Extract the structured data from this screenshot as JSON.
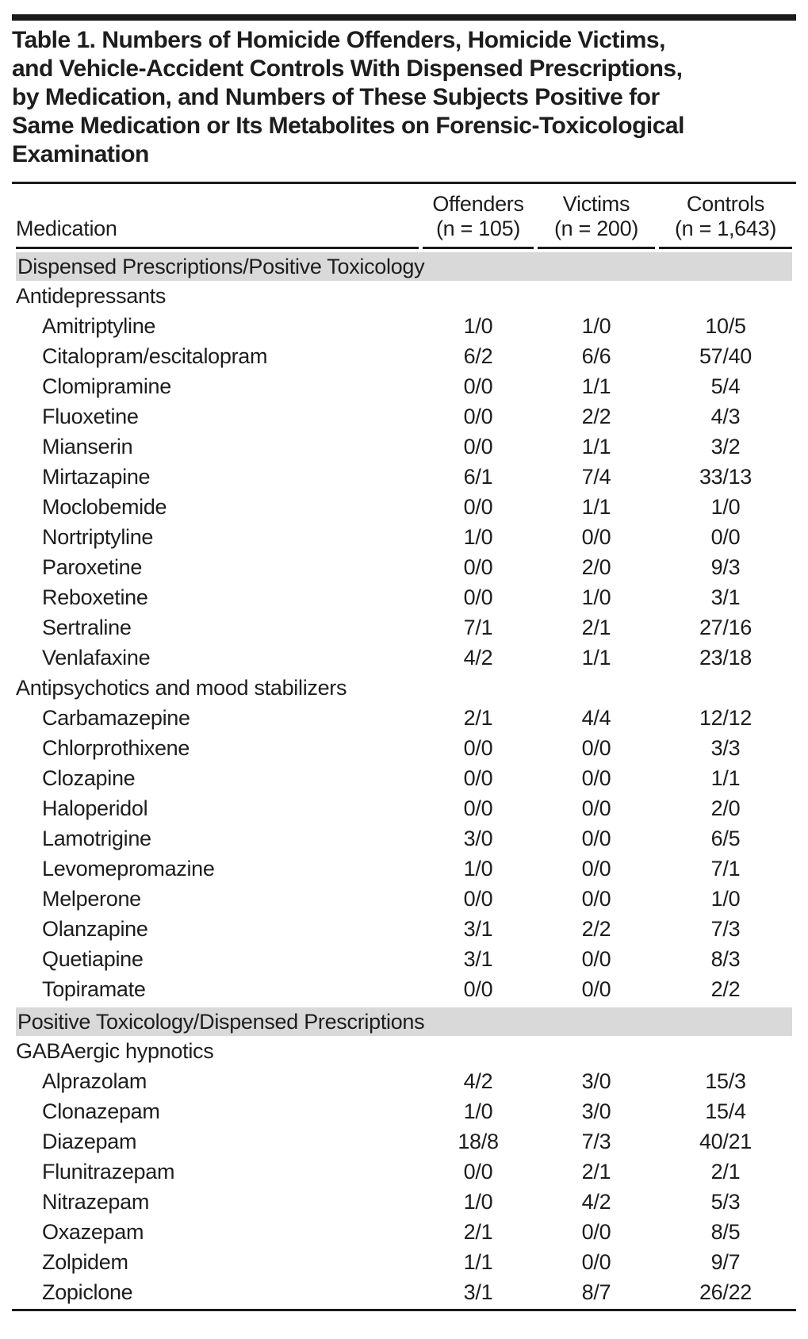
{
  "page": {
    "colors": {
      "text": "#1d1d1d",
      "rule": "#1a1a1a",
      "section_bg": "#d9d9d9",
      "background": "#ffffff"
    }
  },
  "table": {
    "title": "Table 1. Numbers of Homicide Offenders, Homicide Victims, and Vehicle-Accident Controls With Dispensed Prescriptions, by Medication, and Numbers of These Subjects Positive for Same Medication or Its Metabolites on Forensic-Toxicological Examination",
    "title_lines": [
      "Table 1. Numbers of Homicide Offenders, Homicide Victims,",
      "and Vehicle-Accident Controls With Dispensed Prescriptions,",
      "by Medication, and Numbers of These Subjects Positive for",
      "Same Medication or Its Metabolites on Forensic-Toxicological",
      "Examination"
    ],
    "header": {
      "medication_label": "Medication",
      "columns": [
        {
          "label": "Offenders",
          "n": "(n = 105)"
        },
        {
          "label": "Victims",
          "n": "(n = 200)"
        },
        {
          "label": "Controls",
          "n": "(n = 1,643)"
        }
      ]
    },
    "rows": [
      {
        "type": "section",
        "label": "Dispensed Prescriptions/Positive Toxicology"
      },
      {
        "type": "group",
        "label": "Antidepressants"
      },
      {
        "type": "drug",
        "name": "Amitriptyline",
        "offenders": "1/0",
        "victims": "1/0",
        "controls": "10/5"
      },
      {
        "type": "drug",
        "name": "Citalopram/escitalopram",
        "offenders": "6/2",
        "victims": "6/6",
        "controls": "57/40"
      },
      {
        "type": "drug",
        "name": "Clomipramine",
        "offenders": "0/0",
        "victims": "1/1",
        "controls": "5/4"
      },
      {
        "type": "drug",
        "name": "Fluoxetine",
        "offenders": "0/0",
        "victims": "2/2",
        "controls": "4/3"
      },
      {
        "type": "drug",
        "name": "Mianserin",
        "offenders": "0/0",
        "victims": "1/1",
        "controls": "3/2"
      },
      {
        "type": "drug",
        "name": "Mirtazapine",
        "offenders": "6/1",
        "victims": "7/4",
        "controls": "33/13"
      },
      {
        "type": "drug",
        "name": "Moclobemide",
        "offenders": "0/0",
        "victims": "1/1",
        "controls": "1/0"
      },
      {
        "type": "drug",
        "name": "Nortriptyline",
        "offenders": "1/0",
        "victims": "0/0",
        "controls": "0/0"
      },
      {
        "type": "drug",
        "name": "Paroxetine",
        "offenders": "0/0",
        "victims": "2/0",
        "controls": "9/3"
      },
      {
        "type": "drug",
        "name": "Reboxetine",
        "offenders": "0/0",
        "victims": "1/0",
        "controls": "3/1"
      },
      {
        "type": "drug",
        "name": "Sertraline",
        "offenders": "7/1",
        "victims": "2/1",
        "controls": "27/16"
      },
      {
        "type": "drug",
        "name": "Venlafaxine",
        "offenders": "4/2",
        "victims": "1/1",
        "controls": "23/18"
      },
      {
        "type": "group",
        "label": "Antipsychotics and mood stabilizers"
      },
      {
        "type": "drug",
        "name": "Carbamazepine",
        "offenders": "2/1",
        "victims": "4/4",
        "controls": "12/12"
      },
      {
        "type": "drug",
        "name": "Chlorprothixene",
        "offenders": "0/0",
        "victims": "0/0",
        "controls": "3/3"
      },
      {
        "type": "drug",
        "name": "Clozapine",
        "offenders": "0/0",
        "victims": "0/0",
        "controls": "1/1"
      },
      {
        "type": "drug",
        "name": "Haloperidol",
        "offenders": "0/0",
        "victims": "0/0",
        "controls": "2/0"
      },
      {
        "type": "drug",
        "name": "Lamotrigine",
        "offenders": "3/0",
        "victims": "0/0",
        "controls": "6/5"
      },
      {
        "type": "drug",
        "name": "Levomepromazine",
        "offenders": "1/0",
        "victims": "0/0",
        "controls": "7/1"
      },
      {
        "type": "drug",
        "name": "Melperone",
        "offenders": "0/0",
        "victims": "0/0",
        "controls": "1/0"
      },
      {
        "type": "drug",
        "name": "Olanzapine",
        "offenders": "3/1",
        "victims": "2/2",
        "controls": "7/3"
      },
      {
        "type": "drug",
        "name": "Quetiapine",
        "offenders": "3/1",
        "victims": "0/0",
        "controls": "8/3"
      },
      {
        "type": "drug",
        "name": "Topiramate",
        "offenders": "0/0",
        "victims": "0/0",
        "controls": "2/2"
      },
      {
        "type": "section",
        "label": "Positive Toxicology/Dispensed Prescriptions"
      },
      {
        "type": "group",
        "label": "GABAergic hypnotics"
      },
      {
        "type": "drug",
        "name": "Alprazolam",
        "offenders": "4/2",
        "victims": "3/0",
        "controls": "15/3"
      },
      {
        "type": "drug",
        "name": "Clonazepam",
        "offenders": "1/0",
        "victims": "3/0",
        "controls": "15/4"
      },
      {
        "type": "drug",
        "name": "Diazepam",
        "offenders": "18/8",
        "victims": "7/3",
        "controls": "40/21"
      },
      {
        "type": "drug",
        "name": "Flunitrazepam",
        "offenders": "0/0",
        "victims": "2/1",
        "controls": "2/1"
      },
      {
        "type": "drug",
        "name": "Nitrazepam",
        "offenders": "1/0",
        "victims": "4/2",
        "controls": "5/3"
      },
      {
        "type": "drug",
        "name": "Oxazepam",
        "offenders": "2/1",
        "victims": "0/0",
        "controls": "8/5"
      },
      {
        "type": "drug",
        "name": "Zolpidem",
        "offenders": "1/1",
        "victims": "0/0",
        "controls": "9/7"
      },
      {
        "type": "drug",
        "name": "Zopiclone",
        "offenders": "3/1",
        "victims": "8/7",
        "controls": "26/22"
      }
    ]
  }
}
